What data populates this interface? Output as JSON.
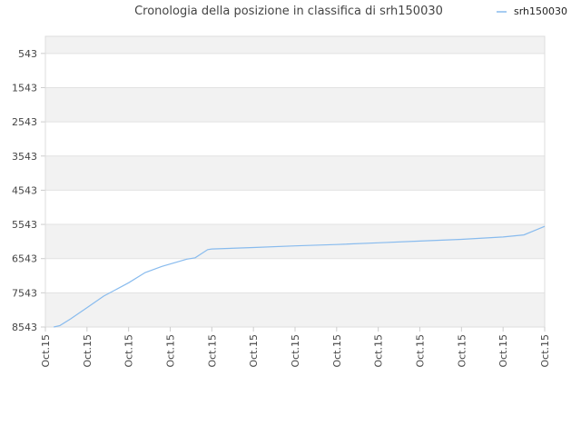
{
  "chart_data": {
    "type": "line",
    "title": "Cronologia della posizione in classifica di srh150030",
    "legend": {
      "position": "top-right",
      "label": "srh150030"
    },
    "y_axis": {
      "inverted": true,
      "range": [
        43,
        8543
      ],
      "tick_values": [
        543,
        1543,
        2543,
        3543,
        4543,
        5543,
        6543,
        7543,
        8543
      ],
      "tick_labels": [
        "543",
        "1543",
        "2543",
        "3543",
        "4543",
        "5543",
        "6543",
        "7543",
        "8543"
      ]
    },
    "x_axis": {
      "tick_labels": [
        "Oct.15",
        "Oct.15",
        "Oct.15",
        "Oct.15",
        "Oct.15",
        "Oct.15",
        "Oct.15",
        "Oct.15",
        "Oct.15",
        "Oct.15",
        "Oct.15",
        "Oct.15",
        "Oct.15"
      ]
    },
    "grid": true,
    "series": [
      {
        "name": "srh150030",
        "color": "#88bbee",
        "values": [
          {
            "x": 0.2,
            "y": 8543
          },
          {
            "x": 0.35,
            "y": 8500
          },
          {
            "x": 0.6,
            "y": 8310
          },
          {
            "x": 1.0,
            "y": 7980
          },
          {
            "x": 1.4,
            "y": 7640
          },
          {
            "x": 2.0,
            "y": 7250
          },
          {
            "x": 2.4,
            "y": 6950
          },
          {
            "x": 2.8,
            "y": 6770
          },
          {
            "x": 3.4,
            "y": 6560
          },
          {
            "x": 3.6,
            "y": 6520
          },
          {
            "x": 3.9,
            "y": 6280
          },
          {
            "x": 4.0,
            "y": 6260
          },
          {
            "x": 5.0,
            "y": 6220
          },
          {
            "x": 6.0,
            "y": 6170
          },
          {
            "x": 7.0,
            "y": 6130
          },
          {
            "x": 8.0,
            "y": 6080
          },
          {
            "x": 9.0,
            "y": 6030
          },
          {
            "x": 10.0,
            "y": 5980
          },
          {
            "x": 11.0,
            "y": 5910
          },
          {
            "x": 11.5,
            "y": 5850
          },
          {
            "x": 12.0,
            "y": 5600
          }
        ]
      }
    ]
  }
}
